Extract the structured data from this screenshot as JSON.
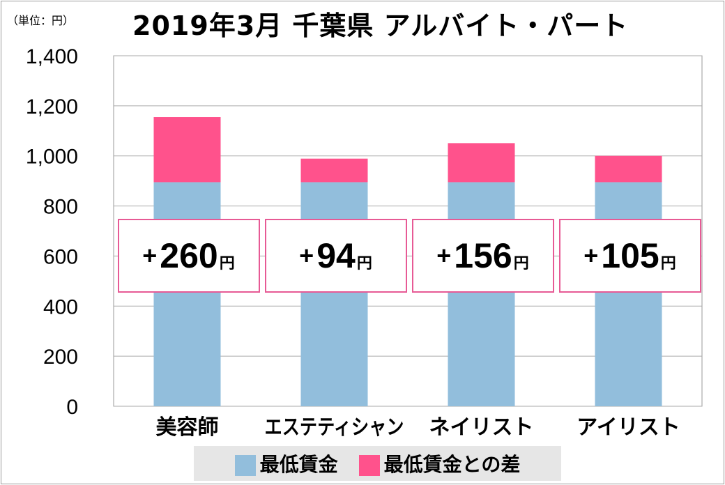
{
  "chart_data": {
    "type": "bar",
    "stacked": true,
    "title": "2019年3月 千葉県 アルバイト・パート",
    "unit_label": "（単位：円）",
    "categories": [
      "美容師",
      "エステティシャン",
      "ネイリスト",
      "アイリスト"
    ],
    "series": [
      {
        "name": "最低賃金",
        "values": [
          895,
          895,
          895,
          895
        ],
        "color": "#92bedc"
      },
      {
        "name": "最低賃金との差",
        "values": [
          260,
          94,
          156,
          105
        ],
        "color": "#ff528c"
      }
    ],
    "difference_labels": [
      {
        "sign": "+",
        "value": "260",
        "unit": "円"
      },
      {
        "sign": "+",
        "value": "94",
        "unit": "円"
      },
      {
        "sign": "+",
        "value": "156",
        "unit": "円"
      },
      {
        "sign": "+",
        "value": "105",
        "unit": "円"
      }
    ],
    "ylim": [
      0,
      1400
    ],
    "yticks": [
      "0",
      "200",
      "400",
      "600",
      "800",
      "1,000",
      "1,200",
      "1,400"
    ],
    "grid": true,
    "legend_position": "bottom"
  }
}
